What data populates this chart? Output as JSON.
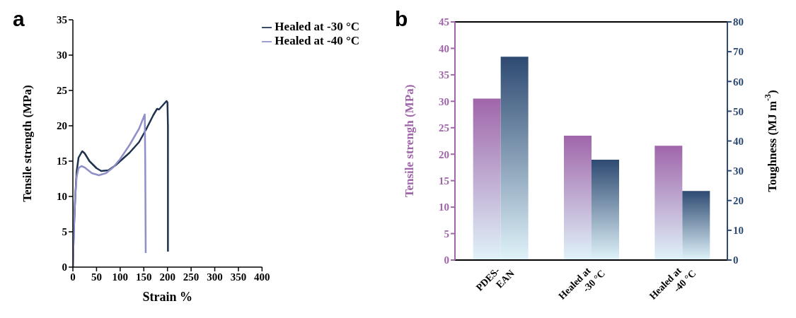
{
  "chart_data": [
    {
      "type": "line",
      "title": "a",
      "xlabel": "Strain %",
      "ylabel": "Tensile strength (MPa)",
      "xlim": [
        0,
        400
      ],
      "xticks": [
        0,
        50,
        100,
        150,
        200,
        250,
        300,
        350,
        400
      ],
      "ylim": [
        0,
        35
      ],
      "yticks": [
        0,
        5,
        10,
        15,
        20,
        25,
        30,
        35
      ],
      "legend": "top right",
      "grid": false,
      "series": [
        {
          "name": "Healed at -30 °C",
          "color": "#1f3350",
          "x": [
            0,
            2,
            5,
            8,
            12,
            18,
            20,
            25,
            35,
            50,
            60,
            75,
            90,
            100,
            120,
            140,
            155,
            170,
            178,
            182,
            190,
            198,
            200,
            201,
            201
          ],
          "values": [
            0,
            5,
            10,
            13.5,
            15.5,
            16.2,
            16.4,
            16.1,
            15,
            14,
            13.6,
            13.7,
            14.4,
            15,
            16.2,
            17.7,
            19.5,
            21.5,
            22.4,
            22.3,
            22.9,
            23.5,
            23.3,
            20,
            2.2
          ]
        },
        {
          "name": "Healed at -40 °C",
          "color": "#9090c8",
          "x": [
            0,
            2,
            5,
            8,
            12,
            18,
            25,
            40,
            55,
            70,
            85,
            100,
            120,
            140,
            152,
            153,
            154
          ],
          "values": [
            0,
            5,
            10,
            12.8,
            14,
            14.3,
            14.1,
            13.3,
            13,
            13.3,
            14.1,
            15.3,
            17.3,
            19.6,
            21.6,
            15,
            2
          ]
        }
      ]
    },
    {
      "type": "bar",
      "title": "b",
      "categories": [
        "PDES-\nEAN",
        "Healed at\n-30 °C",
        "Healed at\n-40 °C"
      ],
      "ylabel": "Tensile strengh (MPa)",
      "y2label": "Toughness (MJ m$^{-3}$)",
      "ylim": [
        0,
        45
      ],
      "yticks": [
        0,
        5,
        10,
        15,
        20,
        25,
        30,
        35,
        40,
        45
      ],
      "y2lim": [
        0,
        80
      ],
      "y2ticks": [
        0,
        10,
        20,
        30,
        40,
        50,
        60,
        70,
        80
      ],
      "grid": false,
      "legend": false,
      "series": [
        {
          "color": "#a066aa",
          "values": [
            30.5,
            23.5,
            21.6
          ]
        },
        {
          "color": "#2e4a72",
          "axis": "y2",
          "values": [
            68.3,
            33.7,
            23.2
          ]
        }
      ]
    }
  ]
}
